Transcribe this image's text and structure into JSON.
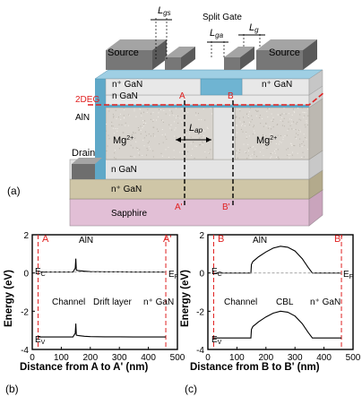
{
  "device": {
    "labels": {
      "l_gs": "L",
      "l_gs_sub": "gs",
      "l_ga": "L",
      "l_ga_sub": "ga",
      "l_g": "L",
      "l_g_sub": "g",
      "split_gate": "Split Gate",
      "source_left": "Source",
      "source_right": "Source",
      "n_plus_gan_top_left": "n⁺ GaN",
      "n_plus_gan_top_right": "n⁺ GaN",
      "n_gan_channel": "n GaN",
      "two_deg": "2DEG",
      "aln": "AlN",
      "a_top": "A",
      "b_top": "B",
      "l_ap": "L",
      "l_ap_sub": "ap",
      "mg_left": "Mg",
      "mg_left_sup": "2+",
      "mg_right": "Mg",
      "mg_right_sup": "2+",
      "drain": "Drain",
      "n_gan_drift": "n GaN",
      "n_plus_gan_bottom": "n⁺ GaN",
      "sapphire": "Sapphire",
      "a_bottom": "A'",
      "b_bottom": "B'",
      "panel_a": "(a)"
    },
    "colors": {
      "metal_top": "#9a9a9a",
      "metal_front": "#6e6e6e",
      "aln_blue": "#5fa8c8",
      "substrate": "#e2bfd6",
      "n_plus_gan": "#cfc6a7",
      "n_gan": "#e4e4e4",
      "mg_region": "#d8d4ce",
      "two_deg_line": "#e02020",
      "cut_line": "#000000"
    }
  },
  "panel_b": {
    "panel_label": "(b)",
    "cut_left": "A",
    "cut_right": "A'",
    "region_label": "AlN",
    "ec": "E",
    "ec_sub": "C",
    "ev": "E",
    "ev_sub": "V",
    "ef": "E",
    "ef_sub": "F",
    "zone_labels": [
      "Channel",
      "Drift layer",
      "n⁺ GaN"
    ],
    "xlabel": "Distance from A to A' (nm)",
    "ylabel": "Energy (eV)"
  },
  "panel_c": {
    "panel_label": "(c)",
    "cut_left": "B",
    "cut_right": "B'",
    "region_label": "AlN",
    "ec": "E",
    "ec_sub": "C",
    "ev": "E",
    "ev_sub": "V",
    "ef": "E",
    "ef_sub": "F",
    "zone_labels": [
      "Channel",
      "CBL",
      "n⁺ GaN"
    ],
    "xlabel": "Distance from B to B' (nm)",
    "ylabel": "Energy (eV)"
  },
  "chart_data": [
    {
      "type": "line",
      "title": "",
      "xlabel": "Distance from A to A' (nm)",
      "ylabel": "Energy (eV)",
      "xlim": [
        0,
        500
      ],
      "ylim": [
        -4,
        2
      ],
      "xticks": [
        0,
        100,
        200,
        300,
        400,
        500
      ],
      "yticks": [
        -4,
        -2,
        0,
        2
      ],
      "cut_lines_x": [
        20,
        460
      ],
      "series": [
        {
          "name": "E_C",
          "x": [
            20,
            140,
            148,
            150,
            152,
            160,
            180,
            200,
            250,
            300,
            350,
            400,
            460
          ],
          "y": [
            0.05,
            0.05,
            0.25,
            0.75,
            0.15,
            0.12,
            0.09,
            0.07,
            0.06,
            0.06,
            0.05,
            0.05,
            0.05
          ]
        },
        {
          "name": "E_V",
          "x": [
            20,
            140,
            148,
            150,
            152,
            160,
            180,
            200,
            250,
            300,
            350,
            400,
            460
          ],
          "y": [
            -3.35,
            -3.35,
            -3.15,
            -2.65,
            -3.25,
            -3.28,
            -3.31,
            -3.33,
            -3.34,
            -3.34,
            -3.35,
            -3.35,
            -3.35
          ]
        },
        {
          "name": "E_F",
          "x": [
            20,
            460
          ],
          "y": [
            0.05,
            0.05
          ],
          "dashed": true
        }
      ]
    },
    {
      "type": "line",
      "title": "",
      "xlabel": "Distance from B to B' (nm)",
      "ylabel": "Energy (eV)",
      "xlim": [
        0,
        500
      ],
      "ylim": [
        -4,
        2
      ],
      "xticks": [
        0,
        100,
        200,
        300,
        400,
        500
      ],
      "yticks": [
        -4,
        -2,
        0,
        2
      ],
      "cut_lines_x": [
        20,
        460
      ],
      "series": [
        {
          "name": "E_C",
          "x": [
            20,
            148,
            150,
            155,
            175,
            200,
            225,
            250,
            275,
            300,
            325,
            345,
            360,
            460
          ],
          "y": [
            0.0,
            0.0,
            0.45,
            0.6,
            0.85,
            1.1,
            1.3,
            1.4,
            1.35,
            1.15,
            0.75,
            0.3,
            0.0,
            0.0
          ]
        },
        {
          "name": "E_V",
          "x": [
            20,
            148,
            150,
            155,
            175,
            200,
            225,
            250,
            275,
            300,
            325,
            345,
            360,
            460
          ],
          "y": [
            -3.4,
            -3.4,
            -2.95,
            -2.8,
            -2.55,
            -2.3,
            -2.1,
            -2.0,
            -2.05,
            -2.25,
            -2.65,
            -3.1,
            -3.4,
            -3.4
          ]
        },
        {
          "name": "E_F",
          "x": [
            20,
            460
          ],
          "y": [
            0.0,
            0.0
          ],
          "dashed": true
        }
      ]
    }
  ]
}
